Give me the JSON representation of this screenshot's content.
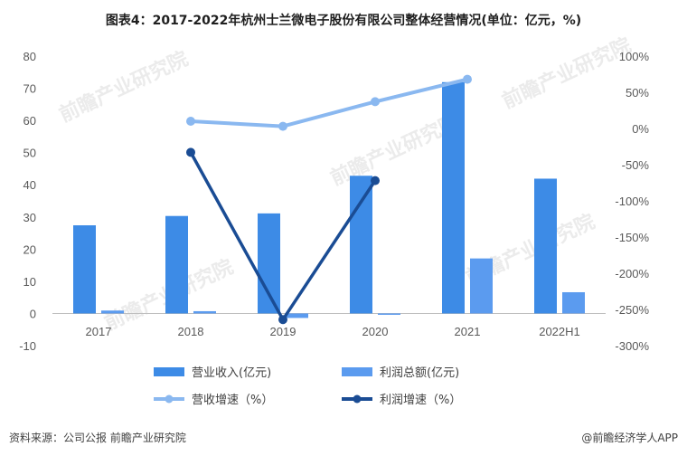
{
  "title": "图表4：2017-2022年杭州士兰微电子股份有限公司整体经营情况(单位：亿元，%)",
  "source": "资料来源：公司公报 前瞻产业研究院",
  "brand": "@前瞻经济学人APP",
  "watermark": "前瞻产业研究院",
  "colors": {
    "revenue": "#3d8be6",
    "profit": "#5b9bef",
    "revenue_growth": "#8ab8f0",
    "profit_growth": "#1a4c94"
  },
  "chart_data": {
    "type": "bar",
    "categories": [
      "2017",
      "2018",
      "2019",
      "2020",
      "2021",
      "2022H1"
    ],
    "left_axis": {
      "ylim": [
        -10,
        80
      ],
      "ticks": [
        "-10",
        "0",
        "10",
        "20",
        "30",
        "40",
        "50",
        "60",
        "70",
        "80"
      ]
    },
    "right_axis": {
      "ylim": [
        -300,
        100
      ],
      "ticks": [
        "-300%",
        "-250%",
        "-200%",
        "-150%",
        "-100%",
        "-50%",
        "0%",
        "50%",
        "100%"
      ]
    },
    "series": [
      {
        "name": "营业收入(亿元)",
        "kind": "bar",
        "axis": "left",
        "values": [
          27.4,
          30.3,
          31.1,
          42.8,
          71.9,
          41.9
        ]
      },
      {
        "name": "利润总额(亿元)",
        "kind": "bar",
        "axis": "left",
        "values": [
          0.9,
          0.7,
          -1.4,
          -0.3,
          17.1,
          6.6
        ]
      },
      {
        "name": "营收增速（%）",
        "kind": "line",
        "axis": "right",
        "values": [
          null,
          10,
          3,
          37,
          68,
          null
        ]
      },
      {
        "name": "利润增速（%）",
        "kind": "line",
        "axis": "right",
        "values": [
          null,
          -33,
          -264,
          -72,
          null,
          null
        ]
      }
    ],
    "legend_position": "bottom"
  }
}
